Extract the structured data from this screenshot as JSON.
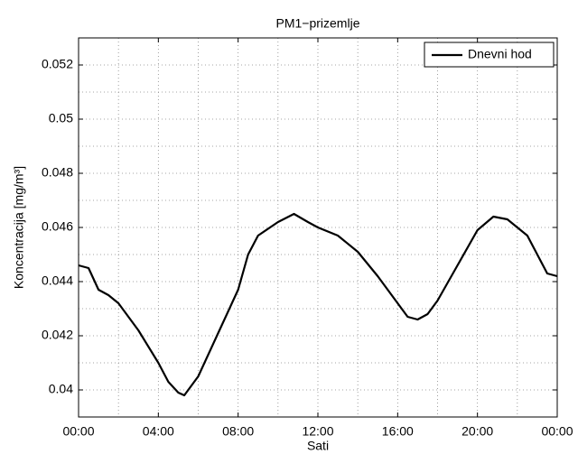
{
  "chart_data": {
    "type": "line",
    "title": "PM1−prizemlje",
    "xlabel": "Sati",
    "ylabel": "Koncentracija [mg/m³]",
    "x": [
      0,
      0.5,
      1,
      1.5,
      2,
      3,
      4,
      4.5,
      5,
      5.3,
      6,
      7,
      8,
      8.5,
      9,
      10,
      10.8,
      11.5,
      12,
      13,
      14,
      15,
      16,
      16.5,
      17,
      17.5,
      18,
      19,
      20,
      20.8,
      21.5,
      22,
      22.5,
      23,
      23.5,
      24
    ],
    "series": [
      {
        "name": "Dnevni hod",
        "color": "#000000",
        "values": [
          0.0446,
          0.0445,
          0.0437,
          0.0435,
          0.0432,
          0.0422,
          0.041,
          0.0403,
          0.0399,
          0.0398,
          0.0405,
          0.0421,
          0.0437,
          0.045,
          0.0457,
          0.0462,
          0.0465,
          0.0462,
          0.046,
          0.0457,
          0.0451,
          0.0442,
          0.0432,
          0.0427,
          0.0426,
          0.0428,
          0.0433,
          0.0446,
          0.0459,
          0.0464,
          0.0463,
          0.046,
          0.0457,
          0.045,
          0.0443,
          0.0442
        ]
      }
    ],
    "xlim": [
      0,
      24
    ],
    "ylim": [
      0.039,
      0.053
    ],
    "xticks": [
      {
        "value": 0,
        "label": "00:00"
      },
      {
        "value": 4,
        "label": "04:00"
      },
      {
        "value": 8,
        "label": "08:00"
      },
      {
        "value": 12,
        "label": "12:00"
      },
      {
        "value": 16,
        "label": "16:00"
      },
      {
        "value": 20,
        "label": "20:00"
      },
      {
        "value": 24,
        "label": "00:00"
      }
    ],
    "yticks": [
      0.04,
      0.042,
      0.044,
      0.046,
      0.048,
      0.05,
      0.052
    ],
    "xminorticks": [
      2,
      6,
      10,
      14,
      18,
      22
    ],
    "yminorticks": [
      0.041,
      0.043,
      0.045,
      0.047,
      0.049,
      0.051
    ],
    "grid": true,
    "legend": "upper right"
  }
}
